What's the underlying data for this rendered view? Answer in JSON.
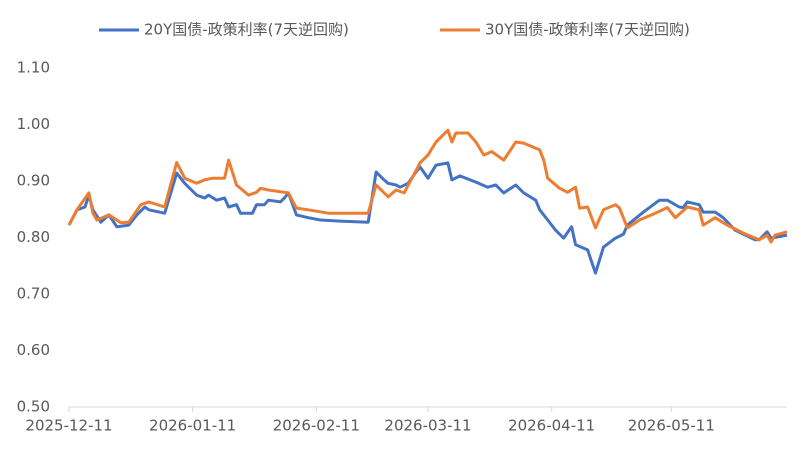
{
  "chart_data": {
    "type": "line",
    "ylim": [
      0.5,
      1.1
    ],
    "yticks": [
      {
        "value": 0.5,
        "label": "0.50"
      },
      {
        "value": 0.6,
        "label": "0.60"
      },
      {
        "value": 0.7,
        "label": "0.70"
      },
      {
        "value": 0.8,
        "label": "0.80"
      },
      {
        "value": 0.9,
        "label": "0.90"
      },
      {
        "value": 1.0,
        "label": "1.00"
      },
      {
        "value": 1.1,
        "label": "1.10"
      }
    ],
    "xlim": [
      "2025-12-11",
      "2026-06-09"
    ],
    "xticks": [
      "2025-12-11",
      "2026-01-11",
      "2026-02-11",
      "2026-03-11",
      "2026-04-11",
      "2026-05-11"
    ],
    "legend": "top",
    "series": [
      {
        "name": "20Y国债-政策利率(7天逆回购)",
        "color": "#4472c4",
        "x": [
          "2025-12-11",
          "2025-12-13",
          "2025-12-15",
          "2025-12-16",
          "2025-12-17",
          "2025-12-19",
          "2025-12-21",
          "2025-12-23",
          "2025-12-26",
          "2025-12-28",
          "2025-12-30",
          "2025-12-31",
          "2026-01-04",
          "2026-01-07",
          "2026-01-09",
          "2026-01-12",
          "2026-01-14",
          "2026-01-15",
          "2026-01-17",
          "2026-01-19",
          "2026-01-20",
          "2026-01-22",
          "2026-01-23",
          "2026-01-26",
          "2026-01-27",
          "2026-01-29",
          "2026-01-30",
          "2026-02-02",
          "2026-02-03",
          "2026-02-04",
          "2026-02-06",
          "2026-02-09",
          "2026-02-12",
          "2026-02-17",
          "2026-02-24",
          "2026-02-26",
          "2026-02-28",
          "2026-03-01",
          "2026-03-03",
          "2026-03-04",
          "2026-03-06",
          "2026-03-08",
          "2026-03-09",
          "2026-03-11",
          "2026-03-13",
          "2026-03-16",
          "2026-03-17",
          "2026-03-19",
          "2026-03-23",
          "2026-03-26",
          "2026-03-28",
          "2026-03-30",
          "2026-04-02",
          "2026-04-04",
          "2026-04-07",
          "2026-04-08",
          "2026-04-10",
          "2026-04-12",
          "2026-04-14",
          "2026-04-16",
          "2026-04-17",
          "2026-04-20",
          "2026-04-22",
          "2026-04-24",
          "2026-04-27",
          "2026-04-29",
          "2026-04-30",
          "2026-05-04",
          "2026-05-08",
          "2026-05-10",
          "2026-05-13",
          "2026-05-14",
          "2026-05-15",
          "2026-05-18",
          "2026-05-19",
          "2026-05-22",
          "2026-05-24",
          "2026-05-27",
          "2026-06-01",
          "2026-06-02",
          "2026-06-04",
          "2026-06-05",
          "2026-06-09"
        ],
        "values": [
          0.822,
          0.849,
          0.854,
          0.875,
          0.849,
          0.827,
          0.84,
          0.819,
          0.822,
          0.84,
          0.854,
          0.849,
          0.843,
          0.914,
          0.896,
          0.875,
          0.87,
          0.875,
          0.866,
          0.87,
          0.854,
          0.858,
          0.843,
          0.843,
          0.858,
          0.858,
          0.866,
          0.863,
          0.87,
          0.879,
          0.84,
          0.835,
          0.831,
          0.829,
          0.827,
          0.916,
          0.902,
          0.896,
          0.893,
          0.889,
          0.896,
          0.916,
          0.925,
          0.905,
          0.928,
          0.932,
          0.902,
          0.909,
          0.898,
          0.889,
          0.893,
          0.879,
          0.893,
          0.879,
          0.866,
          0.849,
          0.831,
          0.813,
          0.799,
          0.819,
          0.787,
          0.778,
          0.737,
          0.783,
          0.799,
          0.806,
          0.822,
          0.845,
          0.866,
          0.866,
          0.854,
          0.853,
          0.863,
          0.858,
          0.845,
          0.845,
          0.835,
          0.813,
          0.796,
          0.796,
          0.81,
          0.799,
          0.804
        ]
      },
      {
        "name": "30Y国债-政策利率(7天逆回购)",
        "color": "#ed7d31",
        "x": [
          "2025-12-11",
          "2025-12-13",
          "2025-12-16",
          "2025-12-17",
          "2025-12-18",
          "2025-12-21",
          "2025-12-24",
          "2025-12-26",
          "2025-12-29",
          "2025-12-31",
          "2026-01-04",
          "2026-01-07",
          "2026-01-09",
          "2026-01-12",
          "2026-01-14",
          "2026-01-16",
          "2026-01-19",
          "2026-01-20",
          "2026-01-22",
          "2026-01-25",
          "2026-01-27",
          "2026-01-28",
          "2026-01-30",
          "2026-02-03",
          "2026-02-04",
          "2026-02-06",
          "2026-02-09",
          "2026-02-14",
          "2026-02-24",
          "2026-02-26",
          "2026-03-01",
          "2026-03-03",
          "2026-03-05",
          "2026-03-07",
          "2026-03-09",
          "2026-03-11",
          "2026-03-13",
          "2026-03-16",
          "2026-03-17",
          "2026-03-18",
          "2026-03-21",
          "2026-03-23",
          "2026-03-25",
          "2026-03-27",
          "2026-03-30",
          "2026-04-02",
          "2026-04-04",
          "2026-04-08",
          "2026-04-09",
          "2026-04-10",
          "2026-04-13",
          "2026-04-15",
          "2026-04-17",
          "2026-04-18",
          "2026-04-20",
          "2026-04-22",
          "2026-04-24",
          "2026-04-27",
          "2026-04-28",
          "2026-04-30",
          "2026-05-03",
          "2026-05-07",
          "2026-05-10",
          "2026-05-12",
          "2026-05-15",
          "2026-05-18",
          "2026-05-19",
          "2026-05-22",
          "2026-05-25",
          "2026-05-29",
          "2026-06-02",
          "2026-06-04",
          "2026-06-05",
          "2026-06-06",
          "2026-06-09"
        ],
        "values": [
          0.822,
          0.849,
          0.879,
          0.843,
          0.831,
          0.84,
          0.826,
          0.827,
          0.858,
          0.863,
          0.854,
          0.933,
          0.905,
          0.896,
          0.902,
          0.905,
          0.905,
          0.937,
          0.893,
          0.875,
          0.88,
          0.887,
          0.884,
          0.88,
          0.879,
          0.852,
          0.849,
          0.843,
          0.843,
          0.893,
          0.872,
          0.884,
          0.879,
          0.905,
          0.932,
          0.946,
          0.969,
          0.99,
          0.969,
          0.985,
          0.985,
          0.969,
          0.946,
          0.952,
          0.937,
          0.969,
          0.967,
          0.955,
          0.937,
          0.905,
          0.887,
          0.88,
          0.889,
          0.852,
          0.854,
          0.817,
          0.849,
          0.858,
          0.852,
          0.817,
          0.831,
          0.843,
          0.853,
          0.835,
          0.854,
          0.849,
          0.822,
          0.835,
          0.822,
          0.808,
          0.796,
          0.804,
          0.792,
          0.804,
          0.81
        ]
      }
    ]
  }
}
